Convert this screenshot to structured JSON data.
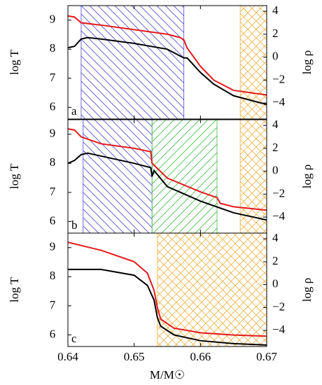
{
  "chart_data": [
    {
      "type": "line",
      "panel_label": "a",
      "ylabel": "log T",
      "y2label": "log ρ",
      "xlim": [
        0.64,
        0.67
      ],
      "xticks": [
        0.64,
        0.65,
        0.66,
        0.67
      ],
      "ylim": [
        5.6,
        9.5
      ],
      "yticks": [
        6,
        7,
        8,
        9
      ],
      "y2lim": [
        -5.4,
        4.5
      ],
      "y2ticks": [
        4,
        2,
        0,
        {
          "value": -2,
          "label": "−2"
        },
        {
          "value": -4,
          "label": "−4"
        }
      ],
      "regions": [
        {
          "x0": 0.642,
          "x1": 0.6575,
          "color": "#4a4ad6",
          "pattern": "hatch-back"
        },
        {
          "x0": 0.666,
          "x1": 0.67,
          "color": "#f0b040",
          "pattern": "cross"
        }
      ],
      "series": [
        {
          "color": "#000000",
          "x": [
            0.64,
            0.641,
            0.642,
            0.643,
            0.645,
            0.65,
            0.655,
            0.6575,
            0.658,
            0.66,
            0.662,
            0.665,
            0.67
          ],
          "values": [
            8.05,
            8.1,
            8.35,
            8.4,
            8.35,
            8.2,
            8.0,
            7.7,
            7.7,
            7.2,
            6.8,
            6.4,
            6.1
          ]
        },
        {
          "color": "#e41a1c",
          "axis": "y2",
          "x": [
            0.64,
            0.641,
            0.642,
            0.645,
            0.65,
            0.655,
            0.657,
            0.6575,
            0.658,
            0.66,
            0.662,
            0.665,
            0.67
          ],
          "values": [
            3.6,
            3.5,
            3.0,
            2.8,
            2.4,
            2.0,
            1.7,
            1.5,
            0.8,
            -0.8,
            -2.0,
            -2.9,
            -3.3
          ]
        }
      ]
    },
    {
      "type": "line",
      "panel_label": "b",
      "ylabel": "log T",
      "y2label": "log ρ",
      "xlim": [
        0.64,
        0.67
      ],
      "xticks": [
        0.64,
        0.65,
        0.66,
        0.67
      ],
      "ylim": [
        5.6,
        9.5
      ],
      "yticks": [
        6,
        7,
        8,
        9
      ],
      "y2lim": [
        -5.4,
        4.5
      ],
      "y2ticks": [
        4,
        2,
        0,
        {
          "value": -2,
          "label": "−2"
        },
        {
          "value": -4,
          "label": "−4"
        }
      ],
      "regions": [
        {
          "x0": 0.6423,
          "x1": 0.6527,
          "color": "#4a4ad6",
          "pattern": "hatch-back"
        },
        {
          "x0": 0.6527,
          "x1": 0.6625,
          "color": "#40c040",
          "pattern": "hatch-forward"
        },
        {
          "x0": 0.666,
          "x1": 0.67,
          "color": "#f0b040",
          "pattern": "cross"
        }
      ],
      "series": [
        {
          "color": "#000000",
          "x": [
            0.64,
            0.641,
            0.642,
            0.643,
            0.645,
            0.65,
            0.6525,
            0.6527,
            0.653,
            0.655,
            0.66,
            0.6625,
            0.665,
            0.67
          ],
          "values": [
            8.0,
            8.1,
            8.3,
            8.35,
            8.25,
            8.0,
            7.85,
            7.55,
            7.75,
            7.2,
            6.7,
            6.5,
            6.3,
            6.05
          ]
        },
        {
          "color": "#e41a1c",
          "axis": "y2",
          "x": [
            0.64,
            0.641,
            0.642,
            0.645,
            0.65,
            0.6525,
            0.6527,
            0.655,
            0.66,
            0.6625,
            0.663,
            0.665,
            0.67
          ],
          "values": [
            3.7,
            3.6,
            3.0,
            2.4,
            2.0,
            1.7,
            0.7,
            -0.6,
            -1.8,
            -2.3,
            -2.8,
            -3.1,
            -3.4
          ]
        }
      ]
    },
    {
      "type": "line",
      "panel_label": "c",
      "ylabel": "log T",
      "y2label": "log ρ",
      "xlabel": "M/M☉",
      "xlim": [
        0.64,
        0.67
      ],
      "xticks": [
        0.64,
        0.65,
        0.66,
        0.67
      ],
      "ylim": [
        5.6,
        9.5
      ],
      "yticks": [
        6,
        7,
        8,
        9
      ],
      "y2lim": [
        -5.4,
        4.5
      ],
      "y2ticks": [
        4,
        2,
        0,
        {
          "value": -2,
          "label": "−2"
        },
        {
          "value": -4,
          "label": "−4"
        }
      ],
      "regions": [
        {
          "x0": 0.6535,
          "x1": 0.67,
          "color": "#f0b040",
          "pattern": "cross"
        }
      ],
      "series": [
        {
          "color": "#000000",
          "x": [
            0.64,
            0.645,
            0.65,
            0.652,
            0.653,
            0.6535,
            0.654,
            0.656,
            0.66,
            0.665,
            0.67
          ],
          "values": [
            8.25,
            8.25,
            8.05,
            7.7,
            7.2,
            6.6,
            6.3,
            6.0,
            5.8,
            5.7,
            5.65
          ]
        },
        {
          "color": "#e41a1c",
          "axis": "y2",
          "x": [
            0.64,
            0.645,
            0.65,
            0.652,
            0.653,
            0.6535,
            0.654,
            0.656,
            0.66,
            0.665,
            0.67
          ],
          "values": [
            3.7,
            3.0,
            2.0,
            1.0,
            -0.5,
            -2.0,
            -3.0,
            -3.8,
            -4.2,
            -4.4,
            -4.5
          ]
        }
      ]
    }
  ]
}
